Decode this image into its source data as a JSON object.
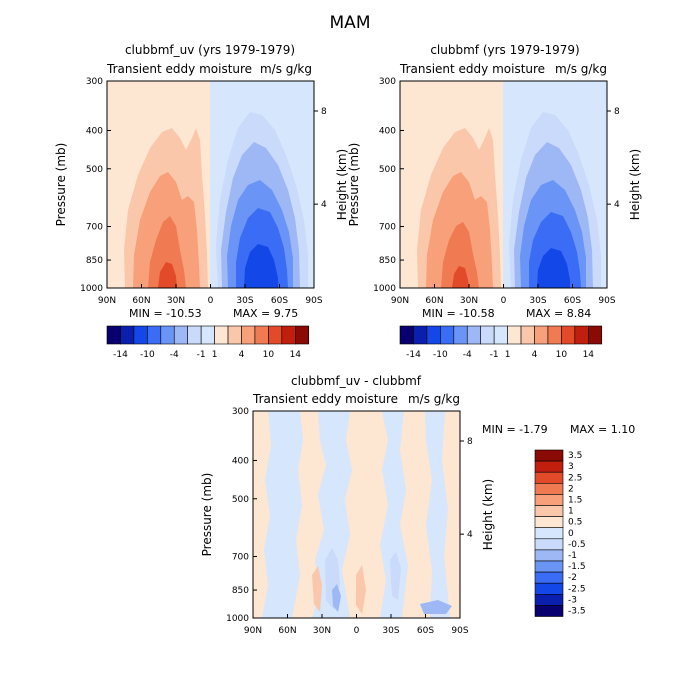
{
  "title": "MAM",
  "colors": {
    "s1": "#08006e",
    "s2": "#0a1fae",
    "s3": "#1447e8",
    "s4": "#3a6cf5",
    "s5": "#6a94f5",
    "s6": "#9db8f5",
    "s7": "#c9dafa",
    "s8": "#d6e6fc",
    "s9": "#fde6d2",
    "s10": "#fbc7aa",
    "s11": "#f7a07a",
    "s12": "#f07a52",
    "s13": "#e24a2a",
    "s14": "#c21e0e",
    "s15": "#8a0a06"
  },
  "panels": [
    {
      "id": "top-left",
      "title": "clubbmf_uv (yrs 1979-1979)",
      "subtitle_left": "Transient eddy moisture",
      "subtitle_right": "m/s g/kg",
      "min_text": "MIN = -10.53",
      "max_text": "MAX =   9.75"
    },
    {
      "id": "top-right",
      "title": "clubbmf (yrs 1979-1979)",
      "subtitle_left": "Transient eddy moisture",
      "subtitle_right": "m/s g/kg",
      "min_text": "MIN = -10.58",
      "max_text": "MAX =   8.84"
    },
    {
      "id": "bottom",
      "title": "clubbmf_uv - clubbmf",
      "subtitle_left": "Transient eddy moisture",
      "subtitle_right": "m/s g/kg",
      "min_text": "MIN =   -1.79",
      "max_text": "MAX =   1.10"
    }
  ],
  "axis_labels": {
    "left": "Pressure (mb)",
    "right": "Height (km)"
  },
  "chart_data": {
    "type": "heatmap",
    "x_ticks": [
      "90N",
      "60N",
      "30N",
      "0",
      "30S",
      "60S",
      "90S"
    ],
    "y_ticks": [
      "300",
      "400",
      "500",
      "700",
      "850",
      "1000"
    ],
    "height_ticks": [
      "8",
      "4"
    ],
    "colorbar_top_labels": [
      "-14",
      "-10",
      "-4",
      "-1",
      "1",
      "4",
      "10",
      "14"
    ],
    "colorbar_diff_labels": [
      "3.5",
      "3",
      "2.5",
      "2",
      "1.5",
      "1",
      "0.5",
      "0",
      "-0.5",
      "-1",
      "-1.5",
      "-2",
      "-2.5",
      "-3",
      "-3.5"
    ]
  }
}
